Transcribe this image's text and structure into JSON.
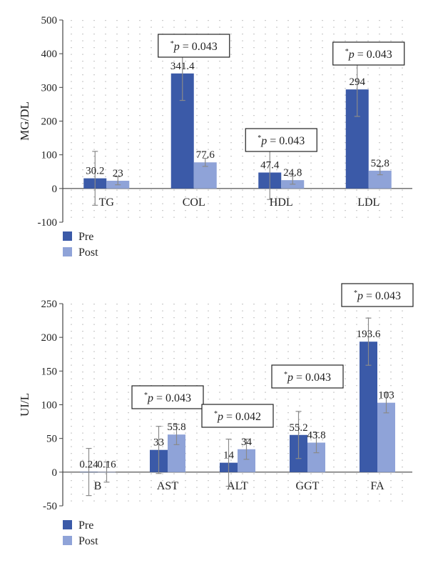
{
  "chart_data": [
    {
      "type": "bar",
      "ylabel": "MG/DL",
      "ylim": [
        -100,
        500
      ],
      "yticks": [
        -100,
        0,
        100,
        200,
        300,
        400,
        500
      ],
      "categories": [
        "TG",
        "COL",
        "HDL",
        "LDL"
      ],
      "series": [
        {
          "name": "Pre",
          "color": "#3b5aa8",
          "values": [
            30.2,
            341.4,
            47.4,
            294
          ],
          "labels": [
            "30.2",
            "341.4",
            "47.4",
            "294"
          ],
          "error": [
            80,
            80,
            80,
            80
          ]
        },
        {
          "name": "Post",
          "color": "#8fa3d8",
          "values": [
            23,
            77.6,
            24.8,
            52.8
          ],
          "labels": [
            "23",
            "77.6",
            "24.8",
            "52.8"
          ],
          "error": [
            12,
            12,
            12,
            12
          ]
        }
      ],
      "grid": "dotted",
      "legend": "bottom-left",
      "annotations": [
        {
          "category": "COL",
          "text": "p = 0.043"
        },
        {
          "category": "HDL",
          "text": "p = 0.043"
        },
        {
          "category": "LDL",
          "text": "p = 0.043"
        }
      ]
    },
    {
      "type": "bar",
      "ylabel": "UI/L",
      "ylim": [
        -50,
        250
      ],
      "yticks": [
        -50,
        0,
        50,
        100,
        150,
        200,
        250
      ],
      "categories": [
        "B",
        "AST",
        "ALT",
        "GGT",
        "FA"
      ],
      "series": [
        {
          "name": "Pre",
          "color": "#3b5aa8",
          "values": [
            0.24,
            33,
            14,
            55.2,
            193.6
          ],
          "labels": [
            "0.24",
            "33",
            "14",
            "55.2",
            "193.6"
          ],
          "error": [
            35,
            35,
            35,
            35,
            35
          ]
        },
        {
          "name": "Post",
          "color": "#8fa3d8",
          "values": [
            0.16,
            55.8,
            34,
            43.8,
            103
          ],
          "labels": [
            "0.16",
            "55.8",
            "34",
            "43.8",
            "103"
          ],
          "error": [
            15,
            15,
            15,
            15,
            15
          ]
        }
      ],
      "grid": "dotted",
      "legend": "bottom-left",
      "annotations": [
        {
          "category": "AST",
          "text": "p = 0.043"
        },
        {
          "category": "ALT",
          "text": "p = 0.042"
        },
        {
          "category": "GGT",
          "text": "p = 0.043"
        },
        {
          "category": "FA",
          "text": "p = 0.043"
        }
      ]
    }
  ]
}
